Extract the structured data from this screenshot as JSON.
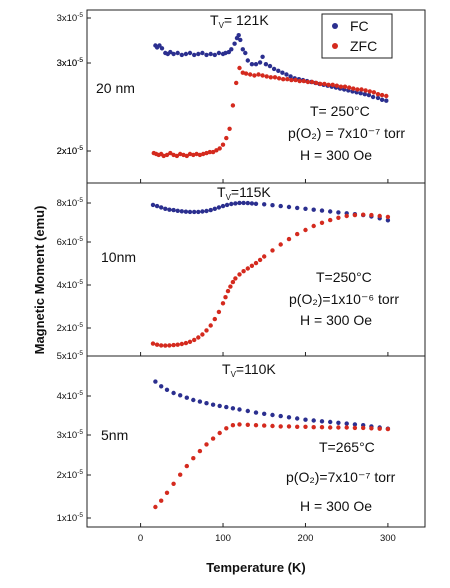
{
  "chart_data": {
    "type": "scatter",
    "xlabel": "Temperature (K)",
    "ylabel": "Magnetic Moment (emu)",
    "x_ticks": [
      "0",
      "100",
      "200",
      "300"
    ],
    "x_tick_values": [
      0,
      100,
      200,
      300
    ],
    "xlim": [
      -65,
      345
    ],
    "legend": {
      "placement": "top-right of top panel",
      "entries": [
        {
          "label": "FC",
          "color": "#2b2f8f"
        },
        {
          "label": "ZFC",
          "color": "#d42a1e"
        }
      ]
    },
    "grid": false,
    "panels": [
      {
        "id": "20nm",
        "sample_label": "20 nm",
        "tv_label": {
          "prefix": "T",
          "sub": "V",
          "rest": "= 121K"
        },
        "conditions": {
          "T": "T= 250°C",
          "p": "p(O₂) = 7x10⁻⁷ torr",
          "H": "H = 300 Oe"
        },
        "y_ticks": [
          "2x10⁻⁵",
          "2x10⁻⁵",
          "3x10⁻⁵",
          "3x10⁻⁵",
          "3x10⁻⁵"
        ],
        "ylim": [
          1.35e-05,
          3.2e-05
        ],
        "series": [
          {
            "name": "FC",
            "x": [
              18,
              20,
              23,
              26,
              30,
              33,
              36,
              40,
              45,
              50,
              55,
              60,
              65,
              70,
              75,
              80,
              85,
              90,
              95,
              100,
              103,
              107,
              110,
              114,
              117,
              119,
              121,
              124,
              127,
              130,
              135,
              140,
              145,
              148,
              152,
              157,
              162,
              167,
              172,
              177,
              182,
              187,
              192,
              197,
              202,
              207,
              212,
              217,
              222,
              227,
              232,
              237,
              242,
              247,
              252,
              257,
              262,
              267,
              272,
              277,
              282,
              288,
              293,
              298
            ],
            "y": [
              2.82e-05,
              2.8e-05,
              2.82e-05,
              2.79e-05,
              2.74e-05,
              2.73e-05,
              2.75e-05,
              2.73e-05,
              2.74e-05,
              2.72e-05,
              2.73e-05,
              2.74e-05,
              2.72e-05,
              2.73e-05,
              2.74e-05,
              2.72e-05,
              2.73e-05,
              2.72e-05,
              2.74e-05,
              2.73e-05,
              2.74e-05,
              2.75e-05,
              2.78e-05,
              2.84e-05,
              2.9e-05,
              2.93e-05,
              2.88e-05,
              2.78e-05,
              2.74e-05,
              2.66e-05,
              2.62e-05,
              2.62e-05,
              2.64e-05,
              2.7e-05,
              2.62e-05,
              2.6e-05,
              2.57e-05,
              2.55e-05,
              2.53e-05,
              2.51e-05,
              2.49e-05,
              2.47e-05,
              2.46e-05,
              2.45e-05,
              2.44e-05,
              2.43e-05,
              2.42e-05,
              2.41e-05,
              2.4e-05,
              2.39e-05,
              2.38e-05,
              2.37e-05,
              2.36e-05,
              2.35e-05,
              2.34e-05,
              2.33e-05,
              2.32e-05,
              2.31e-05,
              2.3e-05,
              2.29e-05,
              2.27e-05,
              2.26e-05,
              2.24e-05,
              2.23e-05
            ]
          },
          {
            "name": "ZFC",
            "x": [
              16,
              19,
              22,
              25,
              28,
              32,
              36,
              40,
              44,
              48,
              52,
              56,
              60,
              64,
              68,
              72,
              76,
              80,
              84,
              88,
              92,
              96,
              100,
              104,
              108,
              112,
              116,
              120,
              124,
              128,
              133,
              138,
              143,
              148,
              153,
              158,
              163,
              168,
              173,
              178,
              183,
              188,
              193,
              198,
              203,
              208,
              213,
              218,
              223,
              228,
              233,
              238,
              243,
              248,
              253,
              258,
              263,
              268,
              273,
              278,
              283,
              288,
              293,
              298
            ],
            "y": [
              1.67e-05,
              1.66e-05,
              1.65e-05,
              1.66e-05,
              1.64e-05,
              1.65e-05,
              1.67e-05,
              1.65e-05,
              1.64e-05,
              1.66e-05,
              1.65e-05,
              1.64e-05,
              1.66e-05,
              1.65e-05,
              1.66e-05,
              1.65e-05,
              1.66e-05,
              1.67e-05,
              1.68e-05,
              1.68e-05,
              1.7e-05,
              1.72e-05,
              1.76e-05,
              1.83e-05,
              1.93e-05,
              2.18e-05,
              2.42e-05,
              2.58e-05,
              2.53e-05,
              2.52e-05,
              2.51e-05,
              2.5e-05,
              2.51e-05,
              2.5e-05,
              2.49e-05,
              2.48e-05,
              2.48e-05,
              2.47e-05,
              2.46e-05,
              2.46e-05,
              2.45e-05,
              2.45e-05,
              2.44e-05,
              2.44e-05,
              2.43e-05,
              2.43e-05,
              2.42e-05,
              2.41e-05,
              2.41e-05,
              2.4e-05,
              2.4e-05,
              2.39e-05,
              2.38e-05,
              2.38e-05,
              2.37e-05,
              2.36e-05,
              2.35e-05,
              2.35e-05,
              2.34e-05,
              2.33e-05,
              2.32e-05,
              2.3e-05,
              2.29e-05,
              2.28e-05
            ]
          }
        ]
      },
      {
        "id": "10nm",
        "sample_label": "10nm",
        "tv_label": {
          "prefix": "T",
          "sub": "V",
          "rest": "=115K"
        },
        "conditions": {
          "T": "T=250°C",
          "p": "p(O₂)=1x10⁻⁶ torr",
          "H": "H = 300 Oe"
        },
        "y_ticks": [
          "2x10⁻⁵",
          "4x10⁻⁵",
          "6x10⁻⁵",
          "8x10⁻⁵"
        ],
        "ylim": [
          1.05e-05,
          8.7e-05
        ],
        "series": [
          {
            "name": "FC",
            "x": [
              15,
              20,
              25,
              30,
              35,
              40,
              45,
              50,
              55,
              60,
              65,
              70,
              75,
              80,
              85,
              90,
              95,
              100,
              105,
              110,
              115,
              120,
              125,
              130,
              135,
              140,
              150,
              160,
              170,
              180,
              190,
              200,
              210,
              220,
              230,
              240,
              250,
              260,
              270,
              280,
              290,
              300
            ],
            "y": [
              7.73e-05,
              7.68e-05,
              7.62e-05,
              7.56e-05,
              7.52e-05,
              7.5e-05,
              7.47e-05,
              7.45e-05,
              7.43e-05,
              7.42e-05,
              7.42e-05,
              7.42e-05,
              7.44e-05,
              7.46e-05,
              7.5e-05,
              7.56e-05,
              7.62e-05,
              7.68e-05,
              7.73e-05,
              7.77e-05,
              7.8e-05,
              7.82e-05,
              7.82e-05,
              7.81e-05,
              7.8e-05,
              7.78e-05,
              7.76e-05,
              7.72e-05,
              7.68e-05,
              7.64e-05,
              7.6e-05,
              7.56e-05,
              7.52e-05,
              7.48e-05,
              7.44e-05,
              7.4e-05,
              7.36e-05,
              7.32e-05,
              7.28e-05,
              7.22e-05,
              7.14e-05,
              7.05e-05
            ]
          },
          {
            "name": "ZFC",
            "x": [
              15,
              20,
              25,
              30,
              35,
              40,
              45,
              50,
              55,
              60,
              65,
              70,
              75,
              80,
              85,
              90,
              95,
              100,
              103,
              106,
              109,
              112,
              115,
              120,
              125,
              130,
              135,
              140,
              145,
              150,
              160,
              170,
              180,
              190,
              200,
              210,
              220,
              230,
              240,
              250,
              260,
              270,
              280,
              290,
              300
            ],
            "y": [
              1.6e-05,
              1.55e-05,
              1.52e-05,
              1.51e-05,
              1.52e-05,
              1.53e-05,
              1.55e-05,
              1.58e-05,
              1.62e-05,
              1.68e-05,
              1.76e-05,
              1.87e-05,
              2e-05,
              2.18e-05,
              2.4e-05,
              2.68e-05,
              3e-05,
              3.38e-05,
              3.65e-05,
              3.92e-05,
              4.12e-05,
              4.32e-05,
              4.48e-05,
              4.66e-05,
              4.8e-05,
              4.92e-05,
              5.04e-05,
              5.16e-05,
              5.3e-05,
              5.45e-05,
              5.72e-05,
              5.98e-05,
              6.22e-05,
              6.44e-05,
              6.62e-05,
              6.8e-05,
              6.94e-05,
              7.06e-05,
              7.16e-05,
              7.24e-05,
              7.28e-05,
              7.3e-05,
              7.28e-05,
              7.24e-05,
              7.2e-05
            ]
          }
        ]
      },
      {
        "id": "5nm",
        "sample_label": "5nm",
        "tv_label": {
          "prefix": "T",
          "sub": "V",
          "rest": "=110K"
        },
        "conditions": {
          "T": "T=265°C",
          "p": "p(O₂)=7x10⁻⁷ torr",
          "H": "H = 300 Oe"
        },
        "y_ticks": [
          "1x10⁻⁵",
          "2x10⁻⁵",
          "3x10⁻⁵",
          "4x10⁻⁵",
          "5x10⁻⁵"
        ],
        "ylim": [
          7.5e-06,
          5.1e-05
        ],
        "series": [
          {
            "name": "FC",
            "x": [
              18,
              25,
              32,
              40,
              48,
              56,
              64,
              72,
              80,
              88,
              96,
              104,
              112,
              120,
              130,
              140,
              150,
              160,
              170,
              180,
              190,
              200,
              210,
              220,
              230,
              240,
              250,
              260,
              270,
              280,
              290,
              300
            ],
            "y": [
              4.45e-05,
              4.33e-05,
              4.24e-05,
              4.16e-05,
              4.1e-05,
              4.04e-05,
              3.98e-05,
              3.94e-05,
              3.9e-05,
              3.86e-05,
              3.83e-05,
              3.8e-05,
              3.77e-05,
              3.74e-05,
              3.7e-05,
              3.66e-05,
              3.63e-05,
              3.6e-05,
              3.57e-05,
              3.54e-05,
              3.51e-05,
              3.48e-05,
              3.46e-05,
              3.44e-05,
              3.42e-05,
              3.4e-05,
              3.38e-05,
              3.36e-05,
              3.34e-05,
              3.31e-05,
              3.28e-05,
              3.25e-05
            ]
          },
          {
            "name": "ZFC",
            "x": [
              18,
              25,
              32,
              40,
              48,
              56,
              64,
              72,
              80,
              88,
              96,
              104,
              112,
              120,
              130,
              140,
              150,
              160,
              170,
              180,
              190,
              200,
              210,
              220,
              230,
              240,
              250,
              260,
              270,
              280,
              290,
              300
            ],
            "y": [
              1.26e-05,
              1.42e-05,
              1.62e-05,
              1.85e-05,
              2.08e-05,
              2.3e-05,
              2.5e-05,
              2.68e-05,
              2.85e-05,
              3e-05,
              3.14e-05,
              3.26e-05,
              3.34e-05,
              3.36e-05,
              3.35e-05,
              3.34e-05,
              3.33e-05,
              3.32e-05,
              3.31e-05,
              3.31e-05,
              3.3e-05,
              3.3e-05,
              3.29e-05,
              3.29e-05,
              3.28e-05,
              3.28e-05,
              3.28e-05,
              3.27e-05,
              3.27e-05,
              3.26e-05,
              3.25e-05,
              3.24e-05
            ]
          }
        ]
      }
    ]
  }
}
